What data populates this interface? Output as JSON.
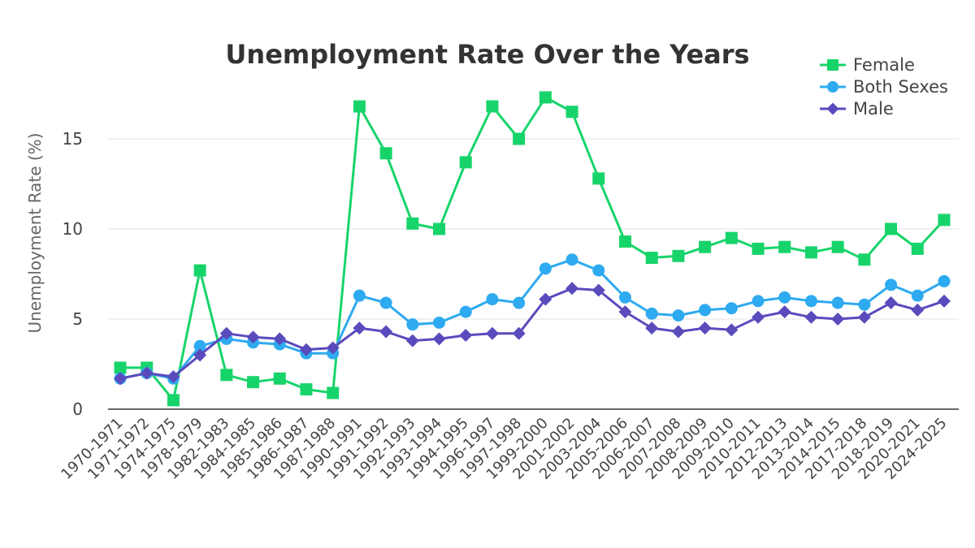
{
  "chart_data": {
    "type": "line",
    "title": "Unemployment Rate Over the Years",
    "xlabel": "",
    "ylabel": "Unemployment Rate (%)",
    "ylim": [
      0,
      18.2
    ],
    "yticks": [
      0,
      5,
      10,
      15
    ],
    "grid": true,
    "legend_position": "top-right",
    "categories": [
      "1970-1971",
      "1971-1972",
      "1974-1975",
      "1978-1979",
      "1982-1983",
      "1984-1985",
      "1985-1986",
      "1986-1987",
      "1987-1988",
      "1990-1991",
      "1991-1992",
      "1992-1993",
      "1993-1994",
      "1994-1995",
      "1996-1997",
      "1997-1998",
      "1999-2000",
      "2001-2002",
      "2003-2004",
      "2005-2006",
      "2006-2007",
      "2007-2008",
      "2008-2009",
      "2009-2010",
      "2010-2011",
      "2012-2013",
      "2013-2014",
      "2014-2015",
      "2017-2018",
      "2018-2019",
      "2020-2021",
      "2024-2025"
    ],
    "series": [
      {
        "name": "Female",
        "color": "#17d46a",
        "marker": "square",
        "values": [
          2.3,
          2.3,
          0.5,
          7.7,
          1.9,
          1.5,
          1.7,
          1.1,
          0.9,
          16.8,
          14.2,
          10.3,
          10.0,
          13.7,
          16.8,
          15.0,
          17.3,
          16.5,
          12.8,
          9.3,
          8.4,
          8.5,
          9.0,
          9.5,
          8.9,
          9.0,
          8.7,
          9.0,
          8.3,
          10.0,
          8.9,
          10.5
        ]
      },
      {
        "name": "Both Sexes",
        "color": "#2eaaf0",
        "marker": "circle",
        "values": [
          1.7,
          2.0,
          1.7,
          3.5,
          3.9,
          3.7,
          3.6,
          3.1,
          3.1,
          6.3,
          5.9,
          4.7,
          4.8,
          5.4,
          6.1,
          5.9,
          7.8,
          8.3,
          7.7,
          6.2,
          5.3,
          5.2,
          5.5,
          5.6,
          6.0,
          6.2,
          6.0,
          5.9,
          5.8,
          6.9,
          6.3,
          7.1
        ]
      },
      {
        "name": "Male",
        "color": "#5a4bbd",
        "marker": "diamond",
        "values": [
          1.7,
          2.0,
          1.8,
          3.0,
          4.2,
          4.0,
          3.9,
          3.3,
          3.4,
          4.5,
          4.3,
          3.8,
          3.9,
          4.1,
          4.2,
          4.2,
          6.1,
          6.7,
          6.6,
          5.4,
          4.5,
          4.3,
          4.5,
          4.4,
          5.1,
          5.4,
          5.1,
          5.0,
          5.1,
          5.9,
          5.5,
          6.0
        ]
      }
    ]
  }
}
